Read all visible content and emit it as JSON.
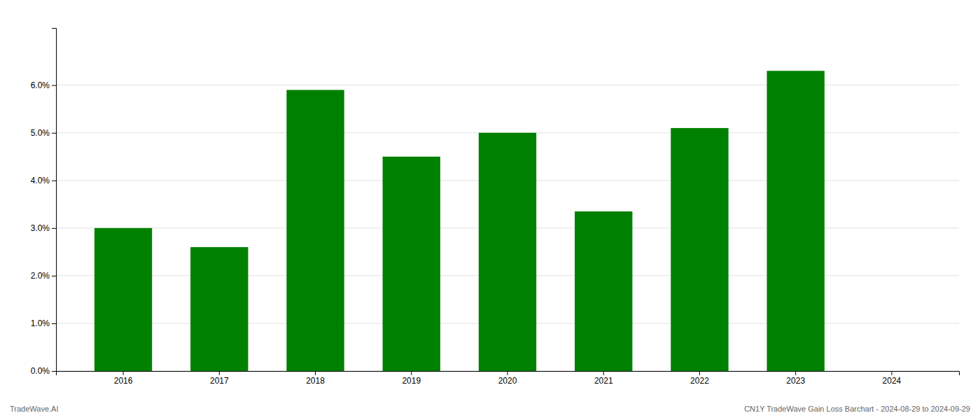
{
  "chart_data": {
    "type": "bar",
    "categories": [
      "2016",
      "2017",
      "2018",
      "2019",
      "2020",
      "2021",
      "2022",
      "2023",
      "2024"
    ],
    "values": [
      0.03,
      0.026,
      0.059,
      0.045,
      0.05,
      0.0335,
      0.051,
      0.063,
      0.0
    ],
    "color": "#008000",
    "ylim": [
      0.0,
      0.072
    ],
    "yticks": [
      {
        "value": 0.0,
        "label": "0.0%"
      },
      {
        "value": 0.01,
        "label": "1.0%"
      },
      {
        "value": 0.02,
        "label": "2.0%"
      },
      {
        "value": 0.03,
        "label": "3.0%"
      },
      {
        "value": 0.04,
        "label": "4.0%"
      },
      {
        "value": 0.05,
        "label": "5.0%"
      },
      {
        "value": 0.06,
        "label": "6.0%"
      }
    ],
    "grid": true,
    "annotations": [
      "TradeWave.AI",
      "CN1Y TradeWave Gain Loss Barchart - 2024-08-29 to 2024-09-29"
    ]
  }
}
